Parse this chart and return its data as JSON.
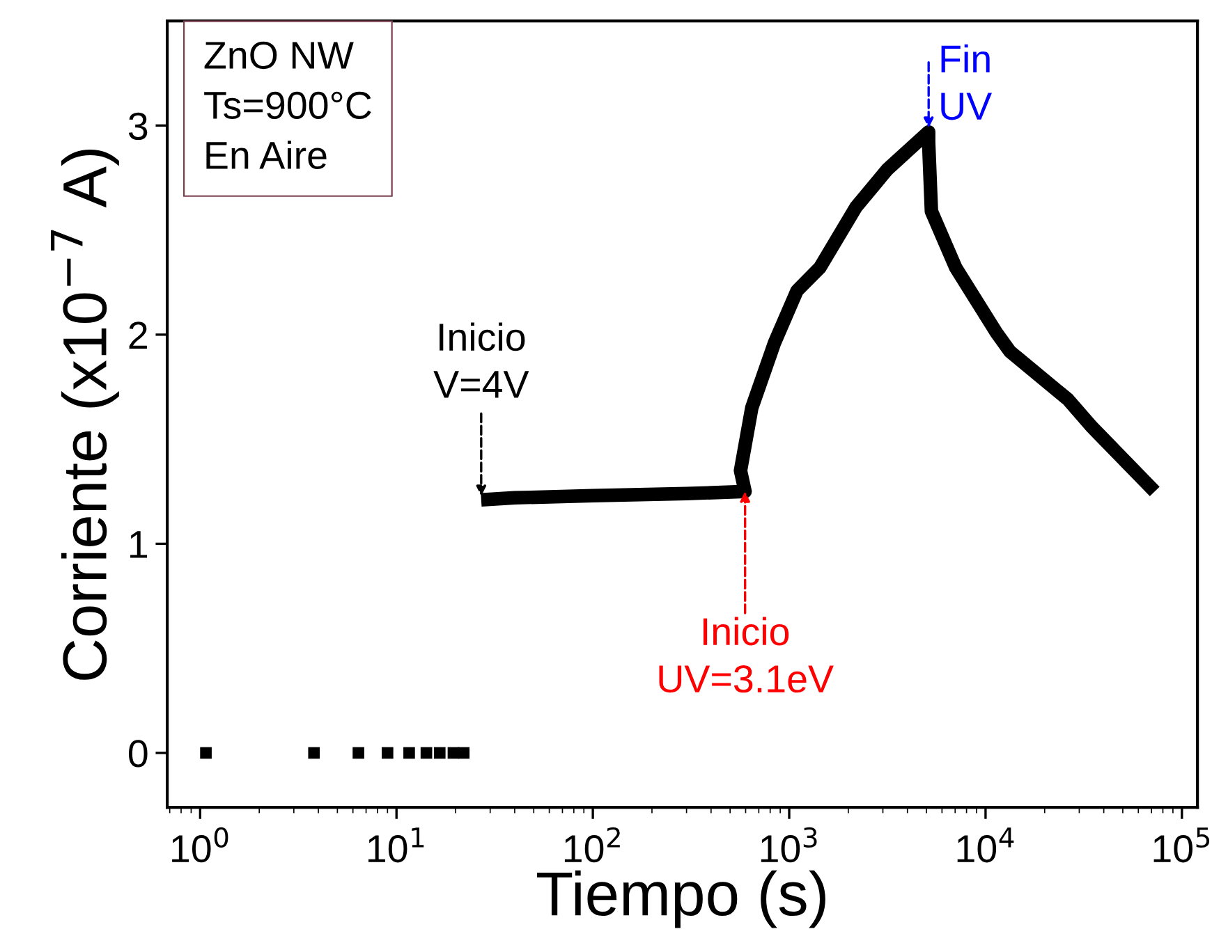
{
  "chart_data": {
    "type": "line",
    "xlabel": "Tiempo (s)",
    "ylabel": "Corriente (x10$^{−7}$ A)",
    "log": "x",
    "xlim": [
      0.68,
      120000
    ],
    "ylim": [
      -0.26,
      3.5
    ],
    "xticks": [
      {
        "value": 1,
        "label": "10$^{0}$"
      },
      {
        "value": 10,
        "label": "10$^{1}$"
      },
      {
        "value": 100,
        "label": "10$^{2}$"
      },
      {
        "value": 1000,
        "label": "10$^{3}$"
      },
      {
        "value": 10000,
        "label": "10$^{4}$"
      },
      {
        "value": 100000,
        "label": "10$^{5}$"
      }
    ],
    "yticks": [
      0,
      1,
      2,
      3
    ],
    "grid": false,
    "legend": false,
    "series": [
      {
        "type": "scatter",
        "marker": "square",
        "color": "#000000",
        "x": [
          1.07,
          3.8,
          6.4,
          9.0,
          11.6,
          14.2,
          16.6,
          19.5,
          22
        ],
        "values": [
          0,
          0,
          0,
          0,
          0,
          0,
          0,
          0,
          0
        ]
      },
      {
        "color": "#000000",
        "line_style": "solid",
        "x": [
          27,
          40,
          100,
          300,
          596,
          565,
          645,
          841,
          1096,
          1432,
          2190,
          3160,
          5130,
          5130,
          5300,
          7050,
          11350,
          13300,
          26300,
          34700,
          72700
        ],
        "values": [
          1.21,
          1.22,
          1.23,
          1.24,
          1.25,
          1.35,
          1.65,
          1.96,
          2.21,
          2.32,
          2.61,
          2.79,
          2.97,
          2.92,
          2.59,
          2.32,
          2.01,
          1.92,
          1.69,
          1.56,
          1.25
        ]
      }
    ],
    "annotations": [
      "ZnO NW\nTs=900°C\nEn Aire",
      {
        "text": "Inicio\nV=4V",
        "x": 27,
        "y": 1.21
      },
      {
        "text": "Inicio\nUV=3.1eV",
        "x": 596,
        "y": 1.25
      },
      {
        "text": "Fin\nUV",
        "x": 5130,
        "y": 2.97
      }
    ]
  }
}
